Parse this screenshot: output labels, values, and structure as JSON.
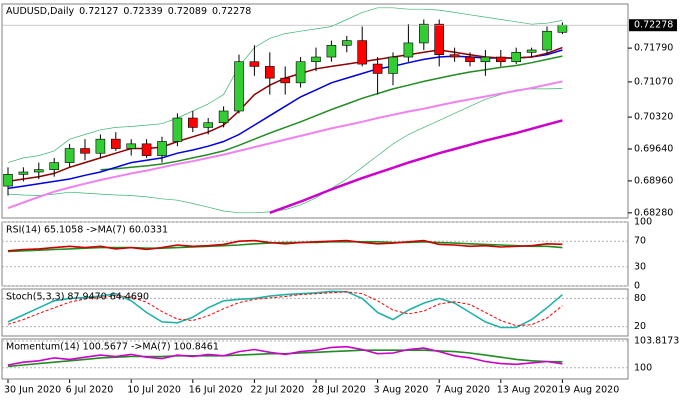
{
  "chart_data": [
    {
      "type": "candlestick",
      "title": "AUDUSD,Daily",
      "categories": [
        "30 Jun 2020",
        null,
        null,
        null,
        "6 Jul 2020",
        null,
        null,
        null,
        "10 Jul 2020",
        null,
        null,
        null,
        "16 Jul 2020",
        null,
        null,
        null,
        "22 Jul 2020",
        null,
        null,
        null,
        "28 Jul 2020",
        null,
        null,
        null,
        "3 Aug 2020",
        null,
        null,
        null,
        "7 Aug 2020",
        null,
        null,
        null,
        "13 Aug 2020",
        null,
        null,
        null,
        "19 Aug 2020"
      ],
      "open": [
        0.6885,
        0.691,
        0.6915,
        0.692,
        0.6935,
        0.6965,
        0.6955,
        0.6985,
        0.6965,
        0.6975,
        0.695,
        0.698,
        0.703,
        0.701,
        0.702,
        0.7045,
        0.715,
        0.714,
        0.7115,
        0.7105,
        0.715,
        0.716,
        0.7185,
        0.7195,
        0.7145,
        0.7125,
        0.716,
        0.719,
        0.723,
        0.7165,
        0.716,
        0.715,
        0.716,
        0.715,
        0.717,
        0.7175,
        0.72127
      ],
      "high": [
        0.6925,
        0.6925,
        0.6935,
        0.6945,
        0.6975,
        0.6985,
        0.6995,
        0.7,
        0.6985,
        0.6985,
        0.699,
        0.704,
        0.7045,
        0.703,
        0.7055,
        0.7165,
        0.7185,
        0.717,
        0.714,
        0.716,
        0.718,
        0.7195,
        0.7205,
        0.7225,
        0.716,
        0.717,
        0.723,
        0.724,
        0.724,
        0.718,
        0.717,
        0.7175,
        0.7175,
        0.718,
        0.718,
        0.7225,
        0.72339
      ],
      "low": [
        0.6865,
        0.6895,
        0.69,
        0.6905,
        0.6925,
        0.694,
        0.6945,
        0.696,
        0.695,
        0.6945,
        0.6935,
        0.697,
        0.7,
        0.6995,
        0.701,
        0.704,
        0.712,
        0.708,
        0.708,
        0.7095,
        0.713,
        0.715,
        0.717,
        0.714,
        0.708,
        0.71,
        0.715,
        0.7175,
        0.714,
        0.715,
        0.714,
        0.712,
        0.714,
        0.7145,
        0.716,
        0.7165,
        0.72089
      ],
      "close": [
        0.691,
        0.6915,
        0.692,
        0.6935,
        0.6965,
        0.6955,
        0.6985,
        0.6965,
        0.6975,
        0.695,
        0.698,
        0.703,
        0.701,
        0.702,
        0.7045,
        0.715,
        0.714,
        0.7115,
        0.7105,
        0.715,
        0.716,
        0.7185,
        0.7195,
        0.7145,
        0.7125,
        0.716,
        0.719,
        0.723,
        0.7165,
        0.716,
        0.715,
        0.716,
        0.715,
        0.717,
        0.7175,
        0.7215,
        0.72278
      ],
      "up_color": "#32cd32",
      "down_color": "#ff0000",
      "overlays": [
        {
          "color": "#3cb371",
          "width": 0.7,
          "values": [
            0.6935,
            0.6945,
            0.695,
            0.696,
            0.6985,
            0.6995,
            0.7005,
            0.701,
            0.7012,
            0.7015,
            0.7018,
            0.703,
            0.7045,
            0.706,
            0.708,
            0.714,
            0.718,
            0.72,
            0.721,
            0.7215,
            0.722,
            0.7225,
            0.724,
            0.7255,
            0.7265,
            0.7265,
            0.7262,
            0.7262,
            0.726,
            0.7255,
            0.725,
            0.7245,
            0.724,
            0.7235,
            0.723,
            0.7232,
            0.7238
          ]
        },
        {
          "color": "#3cb371",
          "width": 0.7,
          "values": [
            0.6868,
            0.6866,
            0.6865,
            0.6868,
            0.6872,
            0.687,
            0.6868,
            0.6866,
            0.6865,
            0.6862,
            0.6858,
            0.6855,
            0.6848,
            0.684,
            0.6832,
            0.6828,
            0.6828,
            0.683,
            0.6835,
            0.6845,
            0.686,
            0.688,
            0.69,
            0.6925,
            0.695,
            0.6975,
            0.6995,
            0.701,
            0.7025,
            0.704,
            0.7055,
            0.707,
            0.708,
            0.709,
            0.7092,
            0.7092,
            0.7093
          ]
        },
        {
          "color": "#ee82ee",
          "width": 2,
          "values": [
            0.6838,
            0.685,
            0.6862,
            0.6873,
            0.6882,
            0.689,
            0.6898,
            0.6905,
            0.6912,
            0.6918,
            0.6925,
            0.6932,
            0.6938,
            0.6945,
            0.6952,
            0.696,
            0.6968,
            0.6976,
            0.6984,
            0.6992,
            0.7,
            0.7008,
            0.7015,
            0.7022,
            0.703,
            0.7037,
            0.7044,
            0.705,
            0.7057,
            0.7064,
            0.707,
            0.7076,
            0.7082,
            0.7088,
            0.7094,
            0.7101,
            0.7108
          ]
        },
        {
          "color": "#cc00cc",
          "width": 2.5,
          "values": [
            null,
            null,
            null,
            null,
            null,
            null,
            null,
            null,
            null,
            null,
            null,
            null,
            null,
            null,
            null,
            null,
            null,
            0.6828,
            0.684,
            0.6852,
            0.6865,
            0.6878,
            0.689,
            0.6902,
            0.6913,
            0.6924,
            0.6935,
            0.6945,
            0.6955,
            0.6964,
            0.6973,
            0.6982,
            0.699,
            0.6998,
            0.7007,
            0.7016,
            0.7025
          ]
        },
        {
          "color": "#228b22",
          "width": 1.5,
          "values": [
            null,
            null,
            null,
            null,
            null,
            null,
            0.692,
            0.6922,
            0.6925,
            0.6928,
            0.6932,
            0.6938,
            0.6945,
            0.6952,
            0.696,
            0.6972,
            0.6985,
            0.6998,
            0.701,
            0.7022,
            0.7035,
            0.7048,
            0.706,
            0.7072,
            0.7082,
            0.7092,
            0.71,
            0.7108,
            0.7115,
            0.7122,
            0.7128,
            0.7133,
            0.7138,
            0.7142,
            0.7148,
            0.7155,
            0.7162
          ]
        },
        {
          "color": "#0000dd",
          "width": 1.5,
          "values": [
            0.688,
            0.6885,
            0.689,
            0.6895,
            0.69,
            0.6908,
            0.6915,
            0.6925,
            0.6935,
            0.694,
            0.6945,
            0.6955,
            0.6962,
            0.697,
            0.698,
            0.6995,
            0.7015,
            0.7035,
            0.7055,
            0.7075,
            0.709,
            0.7105,
            0.7115,
            0.7125,
            0.7135,
            0.714,
            0.7148,
            0.7155,
            0.716,
            0.7162,
            0.716,
            0.7158,
            0.7158,
            0.7158,
            0.716,
            0.7165,
            0.7175
          ]
        },
        {
          "color": "#8b0000",
          "width": 1.5,
          "values": [
            0.6895,
            0.69,
            0.6905,
            0.6912,
            0.6925,
            0.6935,
            0.6945,
            0.6955,
            0.6965,
            0.6965,
            0.6968,
            0.698,
            0.699,
            0.7,
            0.7015,
            0.7045,
            0.708,
            0.71,
            0.7115,
            0.7125,
            0.7135,
            0.714,
            0.7145,
            0.715,
            0.7155,
            0.716,
            0.7165,
            0.717,
            0.7175,
            0.717,
            0.7165,
            0.716,
            0.7158,
            0.7158,
            0.716,
            0.7168,
            0.718
          ]
        }
      ],
      "ylim": [
        0.6817,
        0.7273
      ],
      "yticks": [
        {
          "value": 0.7179,
          "label": "0.71790"
        },
        {
          "value": 0.7107,
          "label": "0.71070"
        },
        {
          "value": 0.7032,
          "label": "0.70320"
        },
        {
          "value": 0.6964,
          "label": "0.69640"
        },
        {
          "value": 0.6896,
          "label": "0.68960"
        },
        {
          "value": 0.6828,
          "label": "0.68280"
        }
      ],
      "grid": false
    },
    {
      "type": "line",
      "title": "RSI(14) 65.1058 ->MA(7) 60.0331",
      "series": [
        {
          "color": "#228b22",
          "style": "solid",
          "values": [
            54,
            55,
            56,
            57,
            58,
            59,
            60,
            60,
            60,
            59,
            59,
            60,
            61,
            62,
            63,
            64,
            66,
            67,
            68,
            68,
            68,
            69,
            69,
            69,
            69,
            68,
            68,
            69,
            68,
            67,
            66,
            65,
            64,
            63,
            62,
            62,
            60.0331
          ]
        },
        {
          "color": "#cc0000",
          "style": "solid",
          "values": [
            55,
            57,
            58,
            60,
            62,
            60,
            62,
            58,
            60,
            57,
            60,
            64,
            62,
            63,
            65,
            70,
            71,
            68,
            66,
            68,
            69,
            70,
            71,
            68,
            66,
            67,
            69,
            71,
            65,
            64,
            62,
            63,
            61,
            62,
            63,
            66,
            65.1058
          ]
        }
      ],
      "ylim": [
        0,
        100
      ],
      "yticks": [
        100,
        70,
        30,
        0
      ]
    },
    {
      "type": "line",
      "title": "Stoch(5,3,3) 87.9470 64.4690",
      "series": [
        {
          "color": "#20b2aa",
          "style": "solid",
          "values": [
            30,
            45,
            60,
            75,
            80,
            82,
            85,
            90,
            75,
            50,
            30,
            28,
            40,
            60,
            75,
            78,
            80,
            85,
            88,
            90,
            92,
            95,
            94,
            80,
            50,
            35,
            55,
            70,
            80,
            70,
            50,
            30,
            18,
            18,
            35,
            60,
            87.947
          ]
        },
        {
          "color": "#ff0000",
          "style": "dashed",
          "values": [
            25,
            35,
            48,
            60,
            72,
            79,
            82,
            86,
            83,
            72,
            52,
            36,
            33,
            43,
            58,
            71,
            78,
            81,
            84,
            88,
            90,
            92,
            94,
            90,
            75,
            55,
            47,
            53,
            68,
            73,
            67,
            50,
            33,
            22,
            24,
            38,
            64.469
          ]
        }
      ],
      "ylim": [
        0,
        100
      ],
      "yticks": [
        80,
        20
      ]
    },
    {
      "type": "line",
      "title": "Momentum(14) 100.5677 ->MA(7) 100.8461",
      "series": [
        {
          "color": "#228b22",
          "style": "solid",
          "values": [
            100.2,
            100.4,
            100.6,
            100.8,
            101.0,
            101.2,
            101.4,
            101.5,
            101.6,
            101.6,
            101.6,
            101.7,
            101.7,
            101.7,
            101.7,
            101.8,
            101.9,
            102.0,
            102.0,
            102.1,
            102.2,
            102.3,
            102.4,
            102.5,
            102.5,
            102.5,
            102.5,
            102.5,
            102.4,
            102.3,
            102.1,
            101.8,
            101.5,
            101.2,
            101.0,
            100.9,
            100.8461
          ]
        },
        {
          "color": "#cc00cc",
          "style": "solid",
          "values": [
            100.4,
            100.8,
            101.0,
            101.4,
            101.2,
            101.5,
            101.8,
            101.6,
            101.9,
            101.5,
            101.3,
            101.8,
            101.6,
            101.9,
            101.7,
            102.3,
            102.6,
            102.2,
            101.9,
            102.3,
            102.5,
            102.9,
            103.0,
            102.6,
            102.0,
            102.1,
            102.6,
            102.8,
            102.3,
            101.7,
            101.4,
            100.9,
            100.6,
            100.5,
            100.7,
            100.9,
            100.5677
          ]
        }
      ],
      "ylim": [
        98.4,
        104.1
      ],
      "yticks": [
        {
          "value": 103.8173,
          "label": "103.8173"
        },
        100
      ]
    }
  ]
}
